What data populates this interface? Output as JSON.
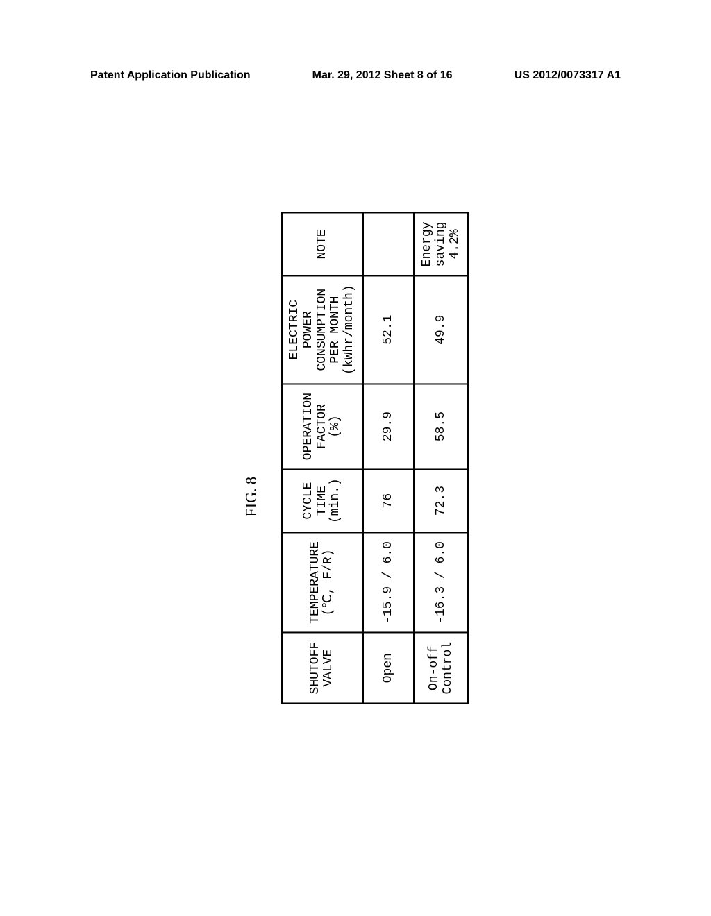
{
  "header": {
    "left": "Patent Application Publication",
    "center": "Mar. 29, 2012  Sheet 8 of 16",
    "right": "US 2012/0073317 A1"
  },
  "figure": {
    "label": "FIG. 8",
    "columns": [
      "SHUTOFF VALVE",
      "TEMPERATURE\n(℃, F/R)",
      "CYCLE TIME\n(min.)",
      "OPERATION\nFACTOR (%)",
      "ELECTRIC POWER\nCONSUMPTION\nPER MONTH\n(kWhr/month)",
      "NOTE"
    ],
    "rows": [
      [
        "Open",
        "-15.9 / 6.0",
        "76",
        "29.9",
        "52.1",
        ""
      ],
      [
        "On-off Control",
        "-16.3 / 6.0",
        "72.3",
        "58.5",
        "49.9",
        "Energy saving 4.2%"
      ]
    ]
  }
}
